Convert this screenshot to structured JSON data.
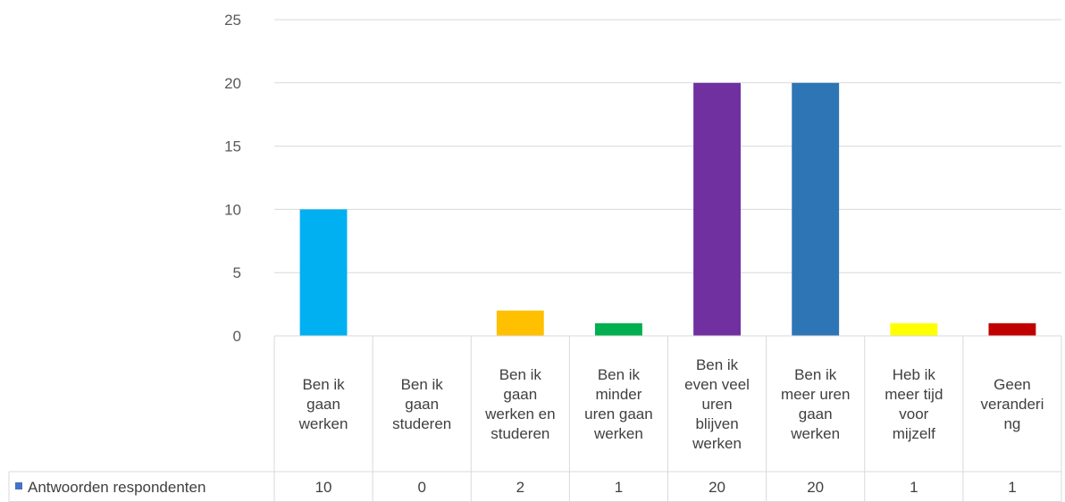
{
  "chart_data": {
    "type": "bar",
    "categories": [
      [
        "Ben ik",
        "gaan",
        "werken"
      ],
      [
        "Ben ik",
        "gaan",
        "studeren"
      ],
      [
        "Ben ik",
        "gaan",
        "werken en",
        "studeren"
      ],
      [
        "Ben ik",
        "minder",
        "uren gaan",
        "werken"
      ],
      [
        "Ben ik",
        "even veel",
        "uren",
        "blijven",
        "werken"
      ],
      [
        "Ben ik",
        "meer uren",
        "gaan",
        "werken"
      ],
      [
        "Heb ik",
        "meer tijd",
        "voor",
        "mijzelf"
      ],
      [
        "Geen",
        "veranderi",
        "ng"
      ]
    ],
    "series": [
      {
        "name": "Antwoorden respondenten",
        "values": [
          10,
          0,
          2,
          1,
          20,
          20,
          1,
          1
        ]
      }
    ],
    "bar_colors": [
      "#00b0f0",
      "#a5a5a5",
      "#ffc000",
      "#00b050",
      "#7030a0",
      "#2e75b6",
      "#ffff00",
      "#c00000"
    ],
    "legend_marker_color": "#4472c4",
    "y_ticks": [
      0,
      5,
      10,
      15,
      20,
      25
    ],
    "ylim": [
      0,
      25
    ],
    "grid": true,
    "legend": "data-table"
  }
}
